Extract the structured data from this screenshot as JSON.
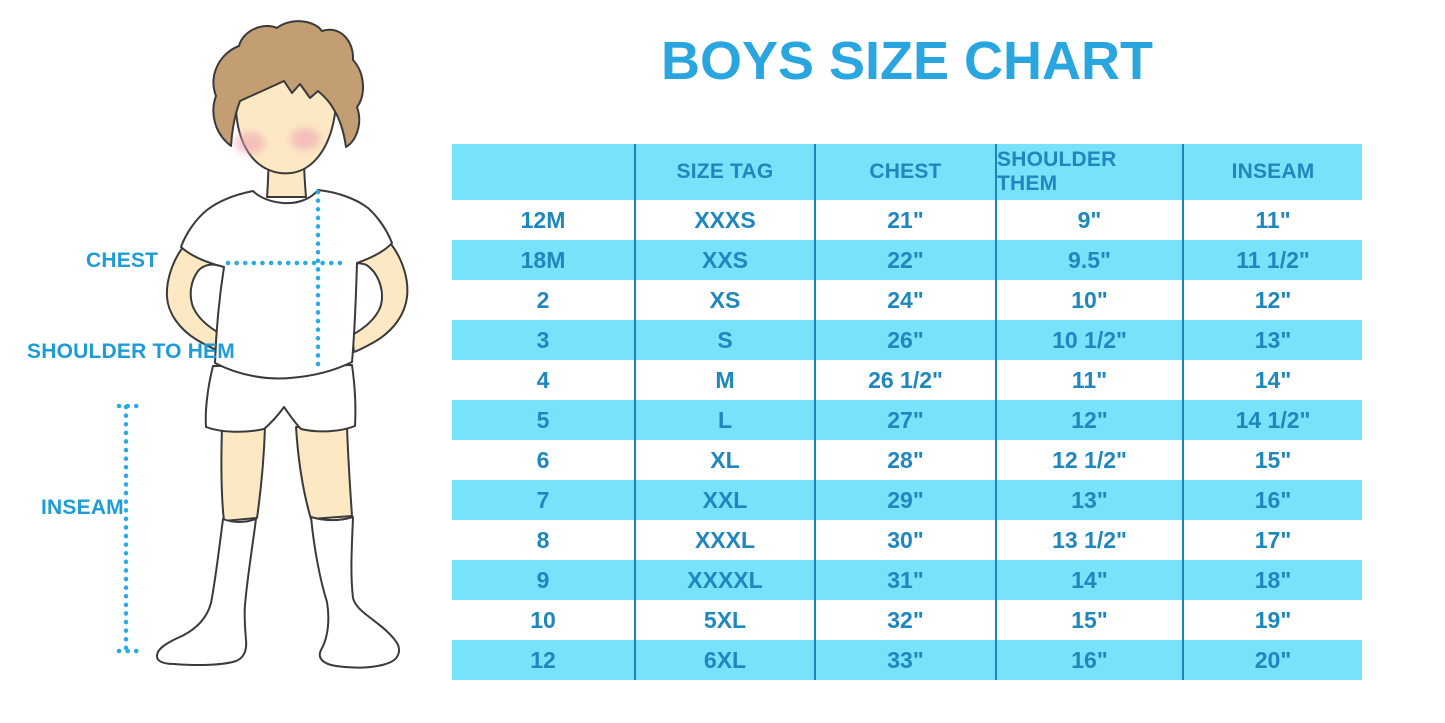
{
  "title": "BOYS SIZE CHART",
  "figure": {
    "description": "Cartoon boy in white t-shirt, shorts and knee socks with dotted measurement guides",
    "labels": {
      "chest": "CHEST",
      "shoulder_to_hem": "SHOULDER TO HEM",
      "inseam": "INSEAM"
    }
  },
  "chart_data": {
    "type": "table",
    "title": "BOYS SIZE CHART",
    "columns": [
      "",
      "SIZE TAG",
      "CHEST",
      "SHOULDER THEM",
      "INSEAM"
    ],
    "rows": [
      [
        "12M",
        "XXXS",
        "21\"",
        "9\"",
        "11\""
      ],
      [
        "18M",
        "XXS",
        "22\"",
        "9.5\"",
        "11 1/2\""
      ],
      [
        "2",
        "XS",
        "24\"",
        "10\"",
        "12\""
      ],
      [
        "3",
        "S",
        "26\"",
        "10 1/2\"",
        "13\""
      ],
      [
        "4",
        "M",
        "26 1/2\"",
        "11\"",
        "14\""
      ],
      [
        "5",
        "L",
        "27\"",
        "12\"",
        "14 1/2\""
      ],
      [
        "6",
        "XL",
        "28\"",
        "12 1/2\"",
        "15\""
      ],
      [
        "7",
        "XXL",
        "29\"",
        "13\"",
        "16\""
      ],
      [
        "8",
        "XXXL",
        "30\"",
        "13 1/2\"",
        "17\""
      ],
      [
        "9",
        "XXXXL",
        "31\"",
        "14\"",
        "18\""
      ],
      [
        "10",
        "5XL",
        "32\"",
        "15\"",
        "19\""
      ],
      [
        "12",
        "6XL",
        "33\"",
        "16\"",
        "20\""
      ]
    ],
    "layout": {
      "header_background": "#77E2FA",
      "alternating_rows": true,
      "grid": "vertical-lines-only"
    }
  },
  "colors": {
    "title_blue": "#29A5DF",
    "label_blue": "#1E9CD8",
    "table_row_blue": "#77E2FA",
    "table_text_blue": "#1E87BE",
    "table_line_blue": "#1987B9",
    "dotted_guide_blue": "#29ABE2",
    "skin": "#FCE9C4",
    "hair": "#C49E73",
    "blush": "#F09CB0",
    "outline": "#3A3A3A"
  }
}
